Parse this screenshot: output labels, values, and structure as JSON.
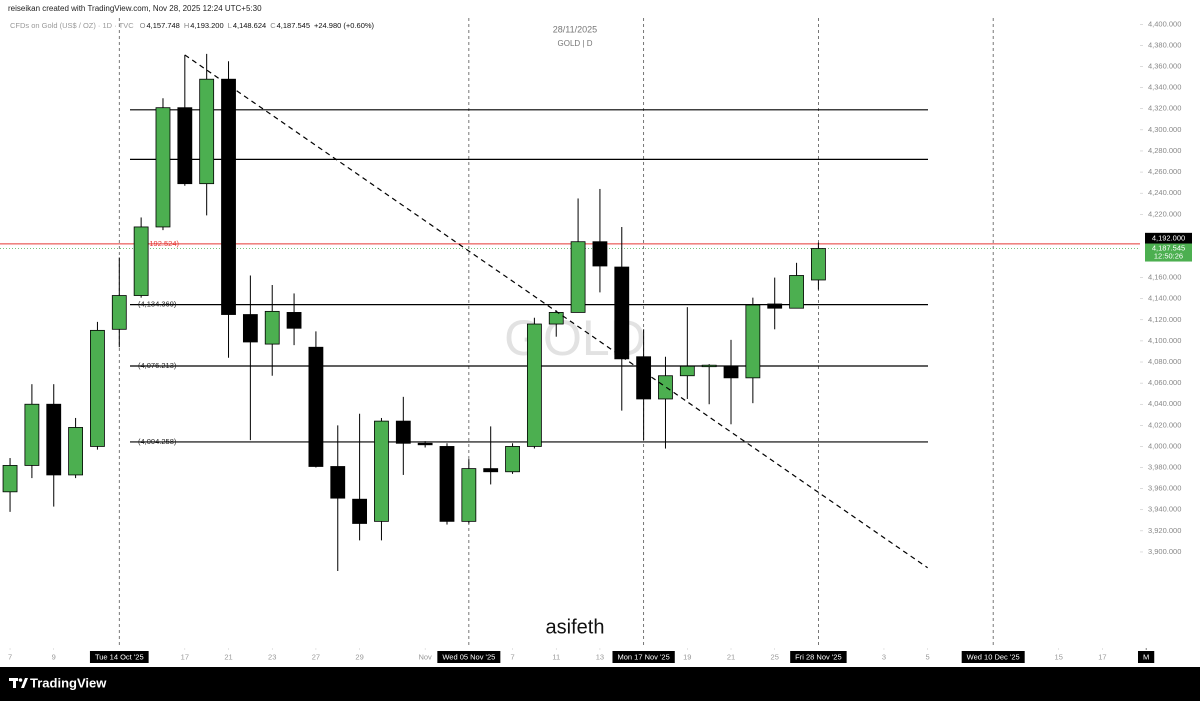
{
  "header": {
    "credit": "reiseikan created with TradingView.com, Nov 28, 2025 12:24 UTC+5:30"
  },
  "chart_data": {
    "type": "candlestick",
    "symbol": "CFDs on Gold (US$ / OZ) · 1D · TVC",
    "ohlc_legend": [
      {
        "key": "O",
        "value": "4,157.748"
      },
      {
        "key": "H",
        "value": "4,193.200"
      },
      {
        "key": "L",
        "value": "4,148.624"
      },
      {
        "key": "C",
        "value": "4,187.545"
      }
    ],
    "change": "+24.980 (+0.60%)",
    "date": "28/11/2025",
    "subtitle": "GOLD | D",
    "watermark": "GOLD",
    "annotation": "asifeth",
    "x": [
      0,
      1,
      2,
      3,
      4,
      5,
      6,
      7,
      8,
      9,
      10,
      11,
      12,
      13,
      14,
      15,
      16,
      17,
      18,
      19,
      20,
      21,
      22,
      23,
      24,
      25,
      26,
      27,
      28,
      29,
      30,
      31,
      32,
      33,
      34,
      35,
      36,
      37
    ],
    "open": [
      3957,
      3982,
      4040,
      3973,
      4000,
      4111,
      4143,
      4208,
      4321,
      4249,
      4348,
      4125,
      4097,
      4127,
      4094,
      3981,
      3950,
      3929,
      4024,
      4003,
      4000,
      3929,
      3979,
      3976,
      4000,
      4116,
      4127,
      4194,
      4170,
      4085,
      4045,
      4067,
      4076,
      4076,
      4065,
      4135,
      4131,
      4157.748
    ],
    "high": [
      3989,
      4059,
      4059,
      4027,
      4118,
      4179,
      4217,
      4330,
      4371,
      4372,
      4365,
      4162,
      4153,
      4145,
      4109,
      4020,
      4031,
      4027,
      4047,
      4005,
      4003,
      3988,
      4019,
      4003,
      4122,
      4129,
      4235,
      4244,
      4208,
      4111,
      4085,
      4132,
      4078,
      4101,
      4141,
      4160,
      4174,
      4193.2
    ],
    "low": [
      3938,
      3970,
      3943,
      3970,
      3997,
      4094,
      4141,
      4205,
      4247,
      4219,
      4084,
      4006,
      4067,
      4096,
      3980,
      3882,
      3911,
      3911,
      3973,
      3999,
      3926,
      3927,
      3964,
      3974,
      3998,
      4104,
      4127,
      4146,
      4034,
      4006,
      3998,
      4045,
      4040,
      4021,
      4041,
      4111,
      4131,
      4148.624
    ],
    "close": [
      3982,
      4040,
      3973,
      4018,
      4110,
      4143,
      4208,
      4321,
      4249,
      4348,
      4125,
      4099,
      4128,
      4112,
      3981,
      3951,
      3927,
      4024,
      4003,
      4002,
      3929,
      3979,
      3976,
      4000,
      4116,
      4127,
      4194,
      4171,
      4083,
      4045,
      4067,
      4076,
      4077,
      4065,
      4134,
      4131,
      4162,
      4187.545
    ],
    "up_color": "#4caf50",
    "down_color": "#000000",
    "xlim": [
      -0.46,
      51.72
    ],
    "xticks": [
      {
        "value": 0,
        "label": "7"
      },
      {
        "value": 2,
        "label": "9"
      },
      {
        "value": 5,
        "label": "Tue 14 Oct '25",
        "marked": true
      },
      {
        "value": 8,
        "label": "17"
      },
      {
        "value": 10,
        "label": "21"
      },
      {
        "value": 12,
        "label": "23"
      },
      {
        "value": 14,
        "label": "27"
      },
      {
        "value": 16,
        "label": "29"
      },
      {
        "value": 19,
        "label": "Nov"
      },
      {
        "value": 21,
        "label": "Wed 05 Nov '25",
        "marked": true
      },
      {
        "value": 23,
        "label": "7"
      },
      {
        "value": 25,
        "label": "11"
      },
      {
        "value": 27,
        "label": "13"
      },
      {
        "value": 29,
        "label": "Mon 17 Nov '25",
        "marked": true
      },
      {
        "value": 31,
        "label": "19"
      },
      {
        "value": 33,
        "label": "21"
      },
      {
        "value": 35,
        "label": "25"
      },
      {
        "value": 37,
        "label": "Fri 28 Nov '25",
        "marked": true
      },
      {
        "value": 40,
        "label": "3"
      },
      {
        "value": 42,
        "label": "5"
      },
      {
        "value": 45,
        "label": "Wed 10 Dec '25",
        "marked": true
      },
      {
        "value": 48,
        "label": "15"
      },
      {
        "value": 50,
        "label": "17"
      },
      {
        "value": 52,
        "label": "M",
        "marked": true
      }
    ],
    "ylim": [
      3809,
      4406
    ],
    "yticks": [
      {
        "value": 4400,
        "label": "4,400.000"
      },
      {
        "value": 4380,
        "label": "4,380.000"
      },
      {
        "value": 4360,
        "label": "4,360.000"
      },
      {
        "value": 4340,
        "label": "4,340.000"
      },
      {
        "value": 4320,
        "label": "4,320.000"
      },
      {
        "value": 4300,
        "label": "4,300.000"
      },
      {
        "value": 4280,
        "label": "4,280.000"
      },
      {
        "value": 4260,
        "label": "4,260.000"
      },
      {
        "value": 4240,
        "label": "4,240.000"
      },
      {
        "value": 4220,
        "label": "4,220.000"
      },
      {
        "value": 4160,
        "label": "4,160.000"
      },
      {
        "value": 4140,
        "label": "4,140.000"
      },
      {
        "value": 4120,
        "label": "4,120.000"
      },
      {
        "value": 4100,
        "label": "4,100.000"
      },
      {
        "value": 4080,
        "label": "4,080.000"
      },
      {
        "value": 4060,
        "label": "4,060.000"
      },
      {
        "value": 4040,
        "label": "4,040.000"
      },
      {
        "value": 4020,
        "label": "4,020.000"
      },
      {
        "value": 4000,
        "label": "4,000.000"
      },
      {
        "value": 3980,
        "label": "3,980.000"
      },
      {
        "value": 3960,
        "label": "3,960.000"
      },
      {
        "value": 3940,
        "label": "3,940.000"
      },
      {
        "value": 3920,
        "label": "3,920.000"
      },
      {
        "value": 3900,
        "label": "3,900.000"
      }
    ],
    "levels": [
      {
        "value": 4319
      },
      {
        "value": 4272
      },
      {
        "value": 4134.369,
        "label": "(4,134.369)"
      },
      {
        "value": 4076.213,
        "label": "(4,076.213)"
      },
      {
        "value": 4004.258,
        "label": "(4,004.258)"
      }
    ],
    "price_line": {
      "value": 4192,
      "label": "4,192.000",
      "left_label": "192.524)",
      "color": "#e53935"
    },
    "last_price": {
      "value": 4187.545,
      "label": "4,187.545",
      "countdown": "12:50:26",
      "color": "#4caf50"
    },
    "trendline": {
      "x": [
        8,
        42
      ],
      "y": [
        4371,
        3885
      ]
    }
  },
  "footer": {
    "brand": "TradingView"
  }
}
